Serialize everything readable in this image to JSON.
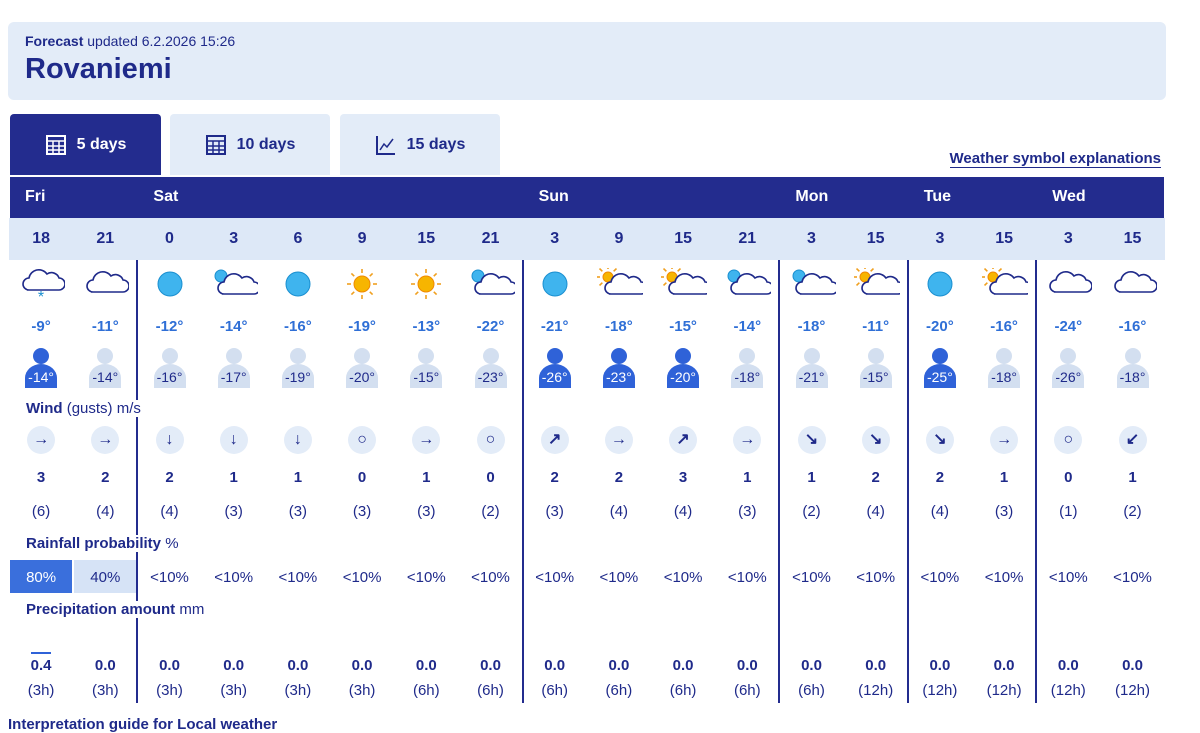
{
  "header": {
    "label": "Forecast",
    "updated": "updated 6.2.2026 15:26",
    "city": "Rovaniemi"
  },
  "tabs": [
    "5 days",
    "10 days",
    "15 days"
  ],
  "symbol_link": "Weather symbol explanations",
  "rows": {
    "wind": {
      "title": "Wind",
      "unit": "(gusts) m/s"
    },
    "rain": {
      "title": "Rainfall probability",
      "unit": "%"
    },
    "precip": {
      "title": "Precipitation amount",
      "unit": "mm"
    }
  },
  "days": [
    {
      "name": "Fri",
      "columns": [
        {
          "hour": "18",
          "symbol": "cloud-snow",
          "temp": "-9°",
          "feels": "-14°",
          "feels_dark": true,
          "wind_dir": "→",
          "wind": "3",
          "gusts": "(6)",
          "rain": "80%",
          "rain_bg": "#3a6fdc",
          "rain_fg": "#ffffff",
          "precip": "0.4",
          "period": "(3h)"
        },
        {
          "hour": "21",
          "symbol": "cloud",
          "temp": "-11°",
          "feels": "-14°",
          "feels_dark": false,
          "wind_dir": "→",
          "wind": "2",
          "gusts": "(4)",
          "rain": "40%",
          "rain_bg": "#d6e3f6",
          "rain_fg": "#1f2a8a",
          "precip": "0.0",
          "period": "(3h)"
        }
      ]
    },
    {
      "name": "Sat",
      "columns": [
        {
          "hour": "0",
          "symbol": "moon",
          "temp": "-12°",
          "feels": "-16°",
          "feels_dark": false,
          "wind_dir": "↓",
          "wind": "2",
          "gusts": "(4)",
          "rain": "<10%",
          "precip": "0.0",
          "period": "(3h)"
        },
        {
          "hour": "3",
          "symbol": "moon-cloud",
          "temp": "-14°",
          "feels": "-17°",
          "feels_dark": false,
          "wind_dir": "↓",
          "wind": "1",
          "gusts": "(3)",
          "rain": "<10%",
          "precip": "0.0",
          "period": "(3h)"
        },
        {
          "hour": "6",
          "symbol": "moon",
          "temp": "-16°",
          "feels": "-19°",
          "feels_dark": false,
          "wind_dir": "↓",
          "wind": "1",
          "gusts": "(3)",
          "rain": "<10%",
          "precip": "0.0",
          "period": "(3h)"
        },
        {
          "hour": "9",
          "symbol": "sun",
          "temp": "-19°",
          "feels": "-20°",
          "feels_dark": false,
          "wind_dir": "○",
          "wind": "0",
          "gusts": "(3)",
          "rain": "<10%",
          "precip": "0.0",
          "period": "(3h)"
        },
        {
          "hour": "15",
          "symbol": "sun",
          "temp": "-13°",
          "feels": "-15°",
          "feels_dark": false,
          "wind_dir": "→",
          "wind": "1",
          "gusts": "(3)",
          "rain": "<10%",
          "precip": "0.0",
          "period": "(6h)"
        },
        {
          "hour": "21",
          "symbol": "moon-cloud",
          "temp": "-22°",
          "feels": "-23°",
          "feels_dark": false,
          "wind_dir": "○",
          "wind": "0",
          "gusts": "(2)",
          "rain": "<10%",
          "precip": "0.0",
          "period": "(6h)"
        }
      ]
    },
    {
      "name": "Sun",
      "columns": [
        {
          "hour": "3",
          "symbol": "moon",
          "temp": "-21°",
          "feels": "-26°",
          "feels_dark": true,
          "wind_dir": "↗",
          "wind": "2",
          "gusts": "(3)",
          "rain": "<10%",
          "precip": "0.0",
          "period": "(6h)"
        },
        {
          "hour": "9",
          "symbol": "sun-cloud",
          "temp": "-18°",
          "feels": "-23°",
          "feels_dark": true,
          "wind_dir": "→",
          "wind": "2",
          "gusts": "(4)",
          "rain": "<10%",
          "precip": "0.0",
          "period": "(6h)"
        },
        {
          "hour": "15",
          "symbol": "sun-cloud",
          "temp": "-15°",
          "feels": "-20°",
          "feels_dark": true,
          "wind_dir": "↗",
          "wind": "3",
          "gusts": "(4)",
          "rain": "<10%",
          "precip": "0.0",
          "period": "(6h)"
        },
        {
          "hour": "21",
          "symbol": "moon-cloud",
          "temp": "-14°",
          "feels": "-18°",
          "feels_dark": false,
          "wind_dir": "→",
          "wind": "1",
          "gusts": "(3)",
          "rain": "<10%",
          "precip": "0.0",
          "period": "(6h)"
        }
      ]
    },
    {
      "name": "Mon",
      "columns": [
        {
          "hour": "3",
          "symbol": "moon-cloud",
          "temp": "-18°",
          "feels": "-21°",
          "feels_dark": false,
          "wind_dir": "↘",
          "wind": "1",
          "gusts": "(2)",
          "rain": "<10%",
          "precip": "0.0",
          "period": "(6h)"
        },
        {
          "hour": "15",
          "symbol": "sun-cloud",
          "temp": "-11°",
          "feels": "-15°",
          "feels_dark": false,
          "wind_dir": "↘",
          "wind": "2",
          "gusts": "(4)",
          "rain": "<10%",
          "precip": "0.0",
          "period": "(12h)"
        }
      ]
    },
    {
      "name": "Tue",
      "columns": [
        {
          "hour": "3",
          "symbol": "moon",
          "temp": "-20°",
          "feels": "-25°",
          "feels_dark": true,
          "wind_dir": "↘",
          "wind": "2",
          "gusts": "(4)",
          "rain": "<10%",
          "precip": "0.0",
          "period": "(12h)"
        },
        {
          "hour": "15",
          "symbol": "sun-cloud",
          "temp": "-16°",
          "feels": "-18°",
          "feels_dark": false,
          "wind_dir": "→",
          "wind": "1",
          "gusts": "(3)",
          "rain": "<10%",
          "precip": "0.0",
          "period": "(12h)"
        }
      ]
    },
    {
      "name": "Wed",
      "columns": [
        {
          "hour": "3",
          "symbol": "cloud",
          "temp": "-24°",
          "feels": "-26°",
          "feels_dark": false,
          "wind_dir": "○",
          "wind": "0",
          "gusts": "(1)",
          "rain": "<10%",
          "precip": "0.0",
          "period": "(12h)"
        },
        {
          "hour": "15",
          "symbol": "cloud",
          "temp": "-16°",
          "feels": "-18°",
          "feels_dark": false,
          "wind_dir": "↙",
          "wind": "1",
          "gusts": "(2)",
          "rain": "<10%",
          "precip": "0.0",
          "period": "(12h)"
        }
      ]
    }
  ],
  "footer_link": "Interpretation guide for Local weather"
}
